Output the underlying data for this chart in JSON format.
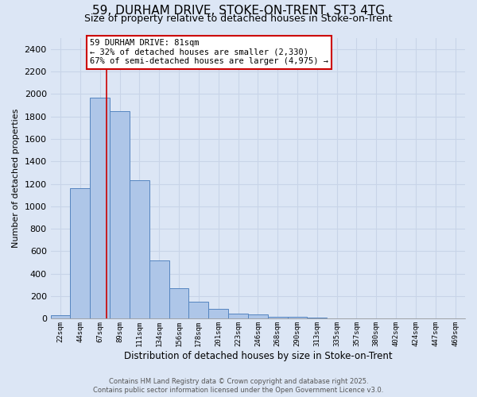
{
  "title": "59, DURHAM DRIVE, STOKE-ON-TRENT, ST3 4TG",
  "subtitle": "Size of property relative to detached houses in Stoke-on-Trent",
  "xlabel": "Distribution of detached houses by size in Stoke-on-Trent",
  "ylabel": "Number of detached properties",
  "categories": [
    "22sqm",
    "44sqm",
    "67sqm",
    "89sqm",
    "111sqm",
    "134sqm",
    "156sqm",
    "178sqm",
    "201sqm",
    "223sqm",
    "246sqm",
    "268sqm",
    "290sqm",
    "313sqm",
    "335sqm",
    "357sqm",
    "380sqm",
    "402sqm",
    "424sqm",
    "447sqm",
    "469sqm"
  ],
  "values": [
    30,
    1160,
    1970,
    1850,
    1230,
    520,
    270,
    150,
    90,
    45,
    40,
    20,
    15,
    10,
    5,
    5,
    5,
    5,
    5,
    5,
    5
  ],
  "bar_color": "#aec6e8",
  "bar_edgecolor": "#5585c0",
  "background_color": "#dce6f5",
  "grid_color": "#c8d4e8",
  "red_line_x": 2.32,
  "annotation_text": "59 DURHAM DRIVE: 81sqm\n← 32% of detached houses are smaller (2,330)\n67% of semi-detached houses are larger (4,975) →",
  "annotation_box_color": "#ffffff",
  "annotation_box_edgecolor": "#cc0000",
  "footer_line1": "Contains HM Land Registry data © Crown copyright and database right 2025.",
  "footer_line2": "Contains public sector information licensed under the Open Government Licence v3.0.",
  "ylim": [
    0,
    2500
  ],
  "yticks": [
    0,
    200,
    400,
    600,
    800,
    1000,
    1200,
    1400,
    1600,
    1800,
    2000,
    2200,
    2400
  ]
}
